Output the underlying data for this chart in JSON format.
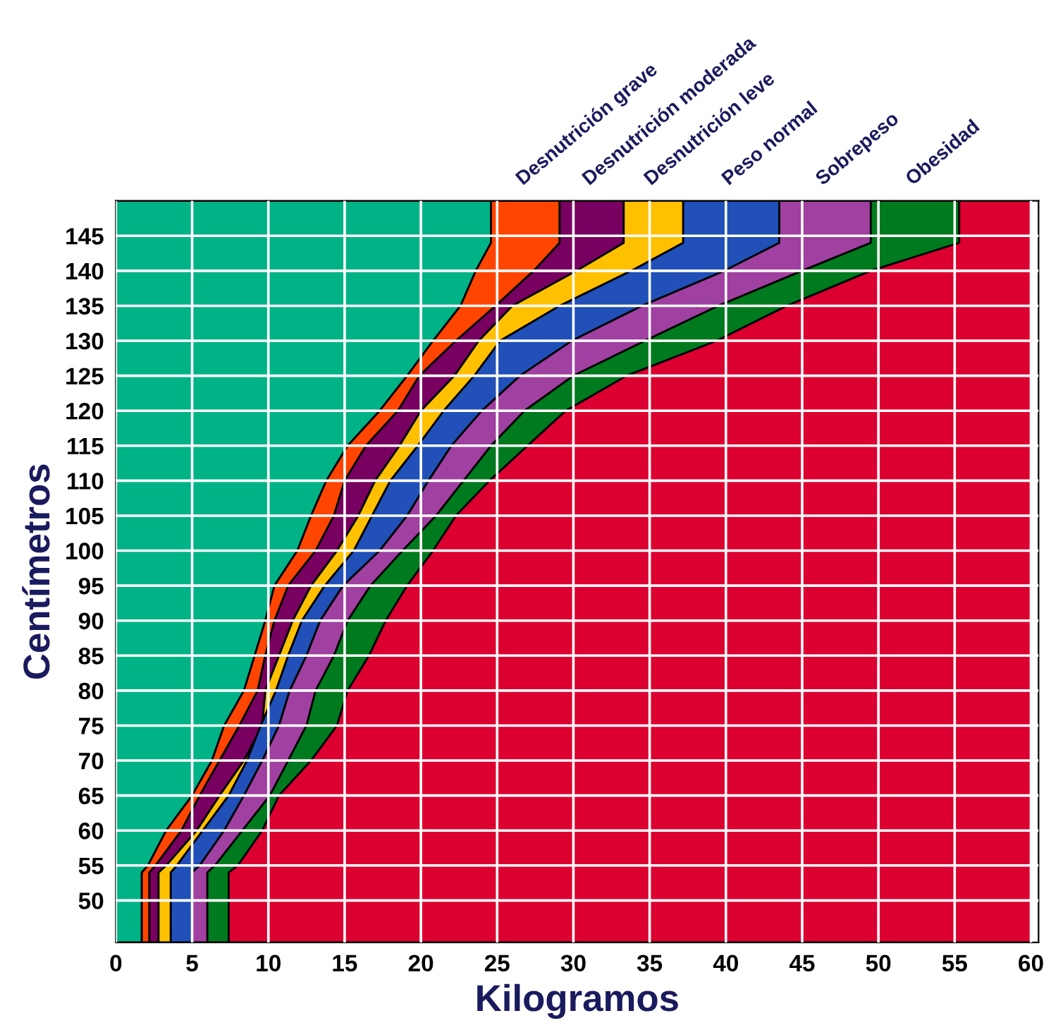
{
  "chart_data": {
    "type": "area",
    "orientation": "horizontal",
    "xlabel": "Kilogramos",
    "ylabel": "Centímetros",
    "x": [
      44,
      54,
      55,
      60,
      65,
      70,
      75,
      80,
      85,
      90,
      95,
      100,
      105,
      110,
      115,
      120,
      125,
      130,
      135,
      140,
      144,
      150
    ],
    "series": [
      {
        "color": "#00b386",
        "values": [
          1.7,
          1.7,
          2.1,
          3.3,
          5.0,
          6.3,
          7.1,
          8.4,
          9.1,
          9.8,
          10.4,
          11.9,
          12.8,
          13.8,
          15.2,
          17.3,
          19.1,
          20.8,
          22.6,
          23.6,
          24.6,
          24.6
        ]
      },
      {
        "name": "Desnutrición grave",
        "color": "#ff4500",
        "values": [
          2.2,
          2.2,
          2.6,
          4.3,
          5.5,
          6.8,
          8.1,
          9.3,
          9.8,
          10.4,
          11.3,
          13.1,
          14.3,
          15.0,
          16.4,
          18.5,
          19.9,
          22.3,
          24.9,
          27.4,
          29.1,
          29.1
        ]
      },
      {
        "name": "Desnutrición moderada",
        "color": "#780060",
        "values": [
          2.8,
          2.8,
          3.3,
          5.3,
          6.8,
          8.4,
          9.6,
          9.8,
          10.7,
          11.6,
          12.8,
          14.5,
          15.9,
          17.0,
          18.6,
          20.0,
          22.2,
          23.8,
          26.0,
          30.2,
          33.3,
          33.3
        ]
      },
      {
        "name": "Desnutrición leve",
        "color": "#ffc000",
        "values": [
          3.6,
          3.6,
          4.0,
          5.7,
          7.4,
          8.6,
          9.5,
          10.5,
          11.3,
          12.2,
          13.7,
          15.6,
          16.8,
          18.0,
          19.8,
          21.5,
          23.5,
          25.2,
          29.1,
          33.8,
          37.2,
          37.2
        ]
      },
      {
        "name": "Peso normal",
        "color": "#2050b8",
        "values": [
          5.0,
          5.0,
          5.5,
          7.1,
          8.4,
          9.6,
          10.7,
          11.4,
          12.5,
          13.4,
          14.9,
          17.3,
          19.1,
          20.5,
          22.0,
          24.0,
          26.5,
          29.9,
          34.5,
          39.9,
          43.5,
          43.5
        ]
      },
      {
        "name": "Sobrepeso",
        "color": "#a040a0",
        "values": [
          6.0,
          6.0,
          6.5,
          8.3,
          10.1,
          11.3,
          12.5,
          13.1,
          14.3,
          15.2,
          16.7,
          18.8,
          21.0,
          22.8,
          24.6,
          26.8,
          30.0,
          34.7,
          39.5,
          45.0,
          49.5,
          49.5
        ]
      },
      {
        "name": "Obesidad",
        "color": "#007a1e",
        "values": [
          7.4,
          7.4,
          8.0,
          9.6,
          10.7,
          12.8,
          14.5,
          15.2,
          16.6,
          17.7,
          19.1,
          20.8,
          22.3,
          24.5,
          27.0,
          29.5,
          33.5,
          39.4,
          44.0,
          49.5,
          55.3,
          55.3
        ]
      },
      {
        "color": "#dc0030",
        "values": [
          60,
          60,
          60,
          60,
          60,
          60,
          60,
          60,
          60,
          60,
          60,
          60,
          60,
          60,
          60,
          60,
          60,
          60,
          60,
          60,
          60,
          60
        ]
      }
    ],
    "xlim": [
      0,
      60.5
    ],
    "ylim": [
      44,
      150
    ],
    "xticks": [
      0,
      5,
      10,
      15,
      20,
      25,
      30,
      35,
      40,
      45,
      50,
      55,
      60
    ],
    "yticks": [
      50,
      55,
      60,
      65,
      70,
      75,
      80,
      85,
      90,
      95,
      100,
      105,
      110,
      115,
      120,
      125,
      130,
      135,
      140,
      145
    ],
    "grid": true
  }
}
